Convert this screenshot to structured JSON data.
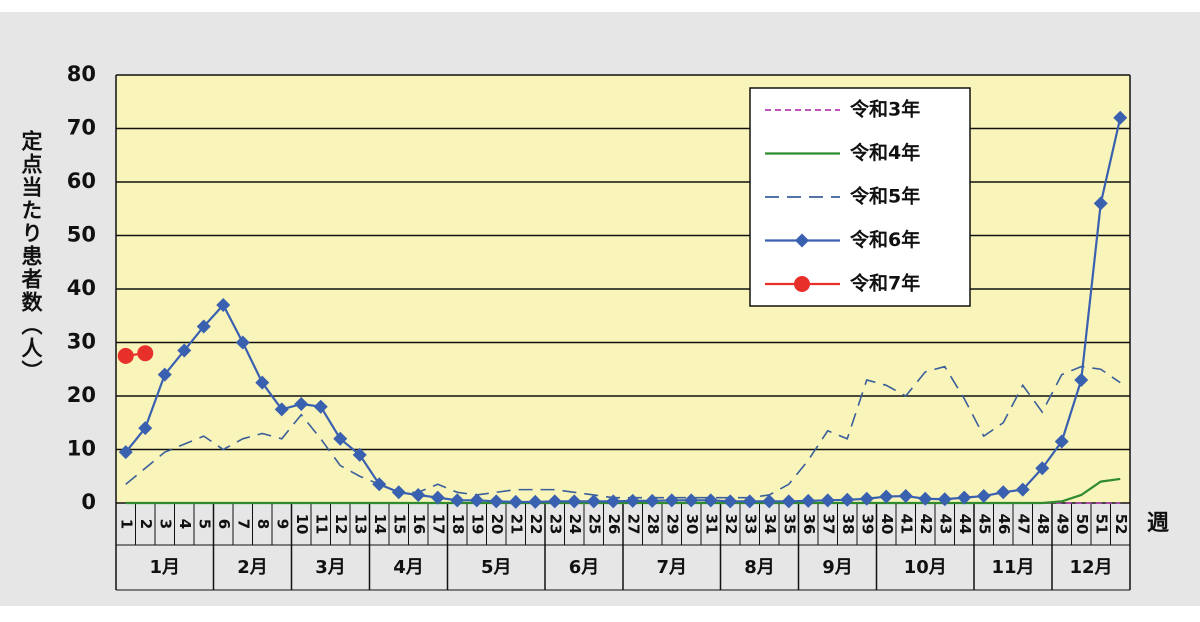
{
  "chart_data": {
    "type": "line",
    "y_label": "定点当たり患者数（人）",
    "x_unit": "週",
    "categories": [
      "1",
      "2",
      "3",
      "4",
      "5",
      "6",
      "7",
      "8",
      "9",
      "10",
      "11",
      "12",
      "13",
      "14",
      "15",
      "16",
      "17",
      "18",
      "19",
      "20",
      "21",
      "22",
      "23",
      "24",
      "25",
      "26",
      "27",
      "28",
      "29",
      "30",
      "31",
      "32",
      "33",
      "34",
      "35",
      "36",
      "37",
      "38",
      "39",
      "40",
      "41",
      "42",
      "43",
      "44",
      "45",
      "46",
      "47",
      "48",
      "49",
      "50",
      "51",
      "52"
    ],
    "months": [
      {
        "label": "1月",
        "from": 1,
        "to": 5
      },
      {
        "label": "2月",
        "from": 6,
        "to": 9
      },
      {
        "label": "3月",
        "from": 10,
        "to": 13
      },
      {
        "label": "4月",
        "from": 14,
        "to": 17
      },
      {
        "label": "5月",
        "from": 18,
        "to": 22
      },
      {
        "label": "6月",
        "from": 23,
        "to": 26
      },
      {
        "label": "7月",
        "from": 27,
        "to": 31
      },
      {
        "label": "8月",
        "from": 32,
        "to": 35
      },
      {
        "label": "9月",
        "from": 36,
        "to": 39
      },
      {
        "label": "10月",
        "from": 40,
        "to": 44
      },
      {
        "label": "11月",
        "from": 45,
        "to": 48
      },
      {
        "label": "12月",
        "from": 49,
        "to": 52
      }
    ],
    "ylim": [
      0,
      80
    ],
    "yticks": [
      0,
      10,
      20,
      30,
      40,
      50,
      60,
      70,
      80
    ],
    "grid": true,
    "series": [
      {
        "name": "令和3年",
        "color": "#b23cb2",
        "style": "dashed",
        "marker": null,
        "values": [
          0,
          0,
          0,
          0,
          0,
          0,
          0,
          0,
          0,
          0,
          0,
          0,
          0,
          0,
          0,
          0,
          0,
          0,
          0,
          0,
          0,
          0,
          0,
          0,
          0,
          0,
          0,
          0,
          0,
          0,
          0,
          0,
          0,
          0,
          0,
          0,
          0,
          0,
          0,
          0,
          0,
          0,
          0,
          0,
          0,
          0,
          0,
          0,
          0,
          0,
          0,
          0
        ]
      },
      {
        "name": "令和4年",
        "color": "#2e8b2e",
        "style": "solid",
        "marker": null,
        "values": [
          0,
          0,
          0,
          0,
          0,
          0,
          0,
          0,
          0,
          0,
          0,
          0,
          0,
          0,
          0,
          0,
          0,
          0,
          0,
          0,
          0,
          0,
          0,
          0,
          0,
          0,
          0,
          0,
          0,
          0,
          0,
          0,
          0,
          0,
          0,
          0,
          0,
          0,
          0,
          0,
          0,
          0,
          0,
          0,
          0,
          0,
          0,
          0,
          0.3,
          1.5,
          4,
          4.5
        ]
      },
      {
        "name": "令和5年",
        "color": "#3a5f9a",
        "style": "dashed",
        "marker": null,
        "values": [
          3.5,
          6.5,
          9.5,
          11,
          12.5,
          10,
          12,
          13,
          12,
          16.5,
          12,
          7,
          5,
          3.5,
          2,
          2,
          3.5,
          2,
          1.5,
          2,
          2.5,
          2.5,
          2.5,
          2,
          1.5,
          1,
          1,
          1,
          1,
          1,
          1,
          1,
          1,
          1.5,
          3.5,
          8,
          13.5,
          12,
          23,
          22,
          20,
          24.5,
          25.5,
          19.5,
          12.5,
          15,
          22,
          17,
          24,
          25.5,
          25,
          22.5
        ]
      },
      {
        "name": "令和6年",
        "color": "#3a60b0",
        "style": "solid",
        "marker": "diamond",
        "values": [
          9.5,
          14,
          24,
          28.5,
          33,
          37,
          30,
          22.5,
          17.5,
          18.5,
          18,
          12,
          9,
          3.5,
          2,
          1.5,
          1,
          0.5,
          0.5,
          0.3,
          0.2,
          0.2,
          0.3,
          0.3,
          0.3,
          0.3,
          0.4,
          0.4,
          0.5,
          0.5,
          0.5,
          0.3,
          0.3,
          0.3,
          0.3,
          0.4,
          0.5,
          0.6,
          0.8,
          1.2,
          1.3,
          0.8,
          0.7,
          1,
          1.3,
          2,
          2.5,
          6.5,
          11.5,
          23,
          56,
          72
        ]
      },
      {
        "name": "令和7年",
        "color": "#e8302a",
        "style": "solid",
        "marker": "circle",
        "values": [
          27.5,
          28,
          null,
          null,
          null,
          null,
          null,
          null,
          null,
          null,
          null,
          null,
          null,
          null,
          null,
          null,
          null,
          null,
          null,
          null,
          null,
          null,
          null,
          null,
          null,
          null,
          null,
          null,
          null,
          null,
          null,
          null,
          null,
          null,
          null,
          null,
          null,
          null,
          null,
          null,
          null,
          null,
          null,
          null,
          null,
          null,
          null,
          null,
          null,
          null,
          null,
          null
        ]
      }
    ]
  }
}
